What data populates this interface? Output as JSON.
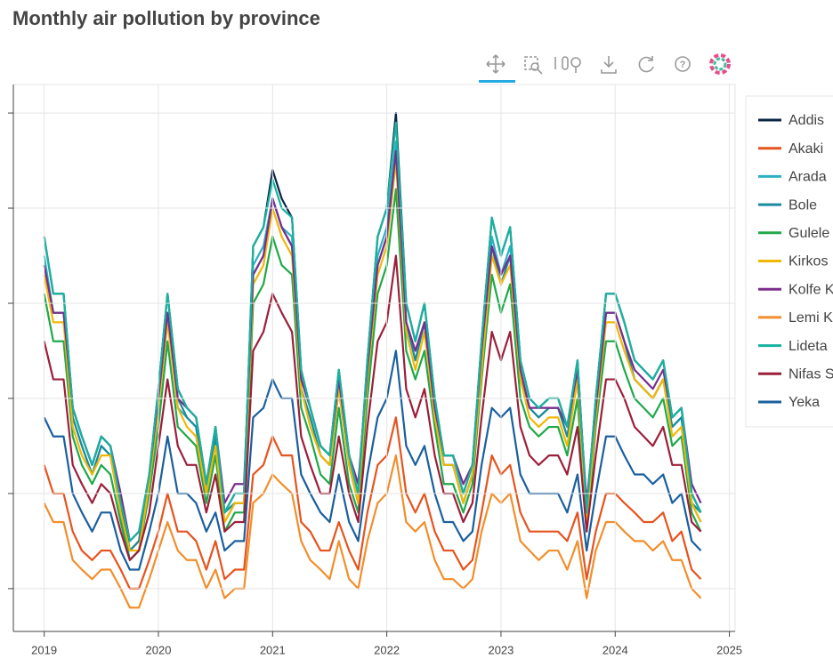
{
  "chart_data": {
    "type": "line",
    "title": "Monthly air pollution by province",
    "x": [
      2019,
      2019.08,
      2019.17,
      2019.25,
      2019.33,
      2019.42,
      2019.5,
      2019.58,
      2019.67,
      2019.75,
      2019.83,
      2019.92,
      2020,
      2020.08,
      2020.17,
      2020.25,
      2020.33,
      2020.42,
      2020.5,
      2020.58,
      2020.67,
      2020.75,
      2020.83,
      2020.92,
      2021,
      2021.08,
      2021.17,
      2021.25,
      2021.33,
      2021.42,
      2021.5,
      2021.58,
      2021.67,
      2021.75,
      2021.83,
      2021.92,
      2022,
      2022.08,
      2022.17,
      2022.25,
      2022.33,
      2022.42,
      2022.5,
      2022.58,
      2022.67,
      2022.75,
      2022.83,
      2022.92,
      2023,
      2023.08,
      2023.17,
      2023.25,
      2023.33,
      2023.42,
      2023.5,
      2023.58,
      2023.67,
      2023.75,
      2023.83,
      2023.92,
      2024,
      2024.08,
      2024.17,
      2024.25,
      2024.33,
      2024.42,
      2024.5,
      2024.58,
      2024.67,
      2024.75
    ],
    "xlim": [
      2018.73,
      2025.05
    ],
    "xticks": [
      2019,
      2020,
      2021,
      2022,
      2023,
      2024,
      2025
    ],
    "ylim": [
      5.5,
      63
    ],
    "yticks": [
      10,
      20,
      30,
      40,
      50,
      60
    ],
    "grid": true,
    "legend": "right",
    "series": [
      {
        "name": "Addis",
        "color": "#0b2545",
        "values": [
          47,
          41,
          41,
          29,
          26,
          23,
          26,
          25,
          19,
          14,
          15,
          22,
          31,
          41,
          31,
          29,
          28,
          21,
          27,
          18,
          20,
          20,
          46,
          48,
          54,
          51,
          49,
          33,
          29,
          25,
          24,
          33,
          24,
          20,
          34,
          47,
          50,
          60,
          40,
          36,
          40,
          30,
          24,
          24,
          20,
          23,
          36,
          49,
          45,
          48,
          34,
          30,
          29,
          30,
          30,
          27,
          34,
          18,
          30,
          41,
          41,
          38,
          34,
          33,
          32,
          34,
          28,
          29,
          20,
          18
        ]
      },
      {
        "name": "Akaki",
        "color": "#e6531e",
        "values": [
          23,
          20,
          20,
          16,
          14,
          13,
          14,
          14,
          12,
          10,
          10,
          13,
          16,
          20,
          16,
          16,
          15,
          12,
          15,
          11,
          12,
          12,
          22,
          23,
          26,
          24,
          24,
          17,
          16,
          14,
          14,
          17,
          14,
          12,
          18,
          23,
          24,
          28,
          20,
          18,
          20,
          16,
          14,
          14,
          12,
          13,
          18,
          24,
          22,
          23,
          18,
          16,
          16,
          16,
          16,
          15,
          18,
          11,
          16,
          20,
          20,
          19,
          18,
          17,
          17,
          18,
          15,
          16,
          12,
          11
        ]
      },
      {
        "name": "Arada",
        "color": "#2bb0c4",
        "values": [
          45,
          39,
          39,
          28,
          25,
          22,
          25,
          24,
          18,
          13,
          14,
          21,
          29,
          39,
          29,
          28,
          27,
          20,
          26,
          17,
          19,
          19,
          44,
          46,
          51,
          48,
          47,
          31,
          28,
          24,
          23,
          31,
          23,
          19,
          32,
          45,
          48,
          57,
          38,
          34,
          38,
          28,
          23,
          23,
          19,
          22,
          34,
          47,
          43,
          46,
          32,
          29,
          28,
          29,
          29,
          26,
          32,
          17,
          29,
          39,
          39,
          36,
          32,
          31,
          30,
          32,
          27,
          28,
          19,
          17
        ]
      },
      {
        "name": "Bole",
        "color": "#1a8a9e",
        "values": [
          44,
          39,
          39,
          28,
          25,
          22,
          25,
          24,
          18,
          14,
          15,
          21,
          30,
          39,
          30,
          28,
          27,
          20,
          26,
          18,
          19,
          19,
          43,
          45,
          51,
          48,
          46,
          31,
          28,
          24,
          23,
          31,
          23,
          19,
          32,
          44,
          47,
          56,
          38,
          34,
          38,
          29,
          23,
          23,
          19,
          22,
          34,
          46,
          42,
          45,
          32,
          29,
          28,
          29,
          29,
          26,
          32,
          18,
          29,
          39,
          39,
          36,
          32,
          31,
          30,
          32,
          27,
          28,
          19,
          18
        ]
      },
      {
        "name": "Gulele",
        "color": "#20a84a",
        "values": [
          41,
          36,
          36,
          26,
          23,
          21,
          23,
          22,
          17,
          13,
          14,
          20,
          27,
          36,
          27,
          26,
          25,
          19,
          24,
          16,
          18,
          18,
          40,
          42,
          47,
          44,
          43,
          29,
          26,
          22,
          21,
          29,
          21,
          18,
          30,
          41,
          44,
          52,
          35,
          32,
          35,
          27,
          21,
          21,
          18,
          21,
          32,
          43,
          39,
          42,
          30,
          27,
          26,
          27,
          27,
          24,
          30,
          16,
          27,
          36,
          36,
          33,
          30,
          29,
          28,
          30,
          25,
          26,
          18,
          16
        ]
      },
      {
        "name": "Kirkos",
        "color": "#f2b705",
        "values": [
          43,
          38,
          38,
          27,
          24,
          22,
          24,
          24,
          18,
          14,
          14,
          21,
          29,
          38,
          29,
          27,
          26,
          20,
          25,
          17,
          19,
          19,
          42,
          44,
          50,
          47,
          45,
          31,
          27,
          24,
          23,
          31,
          23,
          19,
          32,
          43,
          46,
          55,
          37,
          33,
          37,
          28,
          23,
          23,
          19,
          22,
          33,
          45,
          42,
          44,
          32,
          28,
          27,
          28,
          28,
          25,
          32,
          17,
          28,
          38,
          38,
          35,
          32,
          31,
          30,
          32,
          26,
          27,
          19,
          17
        ]
      },
      {
        "name": "Kolfe K",
        "color": "#7b2d8e",
        "values": [
          44,
          39,
          39,
          29,
          26,
          23,
          26,
          25,
          20,
          15,
          16,
          22,
          30,
          39,
          30,
          29,
          28,
          21,
          27,
          19,
          21,
          21,
          43,
          45,
          51,
          48,
          46,
          32,
          29,
          25,
          24,
          32,
          24,
          21,
          33,
          44,
          47,
          56,
          38,
          35,
          38,
          29,
          24,
          24,
          21,
          23,
          35,
          46,
          43,
          45,
          33,
          29,
          29,
          29,
          29,
          27,
          33,
          19,
          29,
          39,
          39,
          36,
          33,
          32,
          31,
          33,
          28,
          29,
          21,
          19
        ]
      },
      {
        "name": "Lemi K",
        "color": "#f28e2b",
        "values": [
          19,
          17,
          17,
          13,
          12,
          11,
          12,
          12,
          10,
          8,
          8,
          11,
          14,
          17,
          14,
          13,
          13,
          10,
          12,
          9,
          10,
          10,
          19,
          20,
          22,
          21,
          20,
          15,
          13,
          12,
          11,
          15,
          11,
          10,
          15,
          19,
          20,
          24,
          17,
          16,
          17,
          13,
          11,
          11,
          10,
          11,
          16,
          20,
          19,
          20,
          15,
          14,
          13,
          14,
          14,
          12,
          15,
          9,
          14,
          17,
          17,
          16,
          15,
          15,
          14,
          15,
          13,
          13,
          10,
          9
        ]
      },
      {
        "name": "Lideta",
        "color": "#17b3a0",
        "values": [
          47,
          41,
          41,
          29,
          26,
          23,
          26,
          25,
          19,
          15,
          16,
          22,
          31,
          41,
          31,
          29,
          28,
          21,
          27,
          18,
          20,
          20,
          46,
          48,
          53,
          50,
          49,
          33,
          29,
          25,
          24,
          33,
          24,
          20,
          34,
          47,
          50,
          59,
          40,
          36,
          40,
          30,
          24,
          24,
          20,
          23,
          36,
          49,
          45,
          48,
          34,
          30,
          29,
          30,
          30,
          27,
          34,
          18,
          30,
          41,
          41,
          38,
          34,
          33,
          32,
          34,
          28,
          29,
          20,
          18
        ]
      },
      {
        "name": "Nifas S",
        "color": "#9c1f3a",
        "values": [
          36,
          32,
          32,
          23,
          21,
          19,
          21,
          20,
          16,
          13,
          14,
          18,
          25,
          32,
          25,
          23,
          23,
          18,
          22,
          16,
          17,
          17,
          35,
          37,
          41,
          39,
          37,
          26,
          23,
          20,
          20,
          26,
          20,
          17,
          27,
          36,
          38,
          45,
          31,
          28,
          31,
          24,
          20,
          20,
          17,
          19,
          28,
          37,
          34,
          37,
          27,
          24,
          23,
          24,
          24,
          22,
          27,
          16,
          24,
          32,
          32,
          30,
          27,
          26,
          25,
          27,
          23,
          23,
          17,
          16
        ]
      },
      {
        "name": "Yeka",
        "color": "#1a5f9e",
        "values": [
          28,
          26,
          26,
          20,
          18,
          16,
          18,
          18,
          14,
          12,
          12,
          16,
          20,
          26,
          20,
          20,
          19,
          16,
          18,
          14,
          15,
          15,
          28,
          29,
          32,
          30,
          30,
          22,
          20,
          18,
          17,
          22,
          17,
          15,
          22,
          28,
          30,
          35,
          25,
          23,
          25,
          20,
          17,
          17,
          15,
          16,
          23,
          29,
          28,
          29,
          22,
          20,
          20,
          20,
          20,
          18,
          22,
          14,
          20,
          26,
          26,
          24,
          22,
          22,
          21,
          22,
          19,
          20,
          15,
          14
        ]
      }
    ]
  }
}
